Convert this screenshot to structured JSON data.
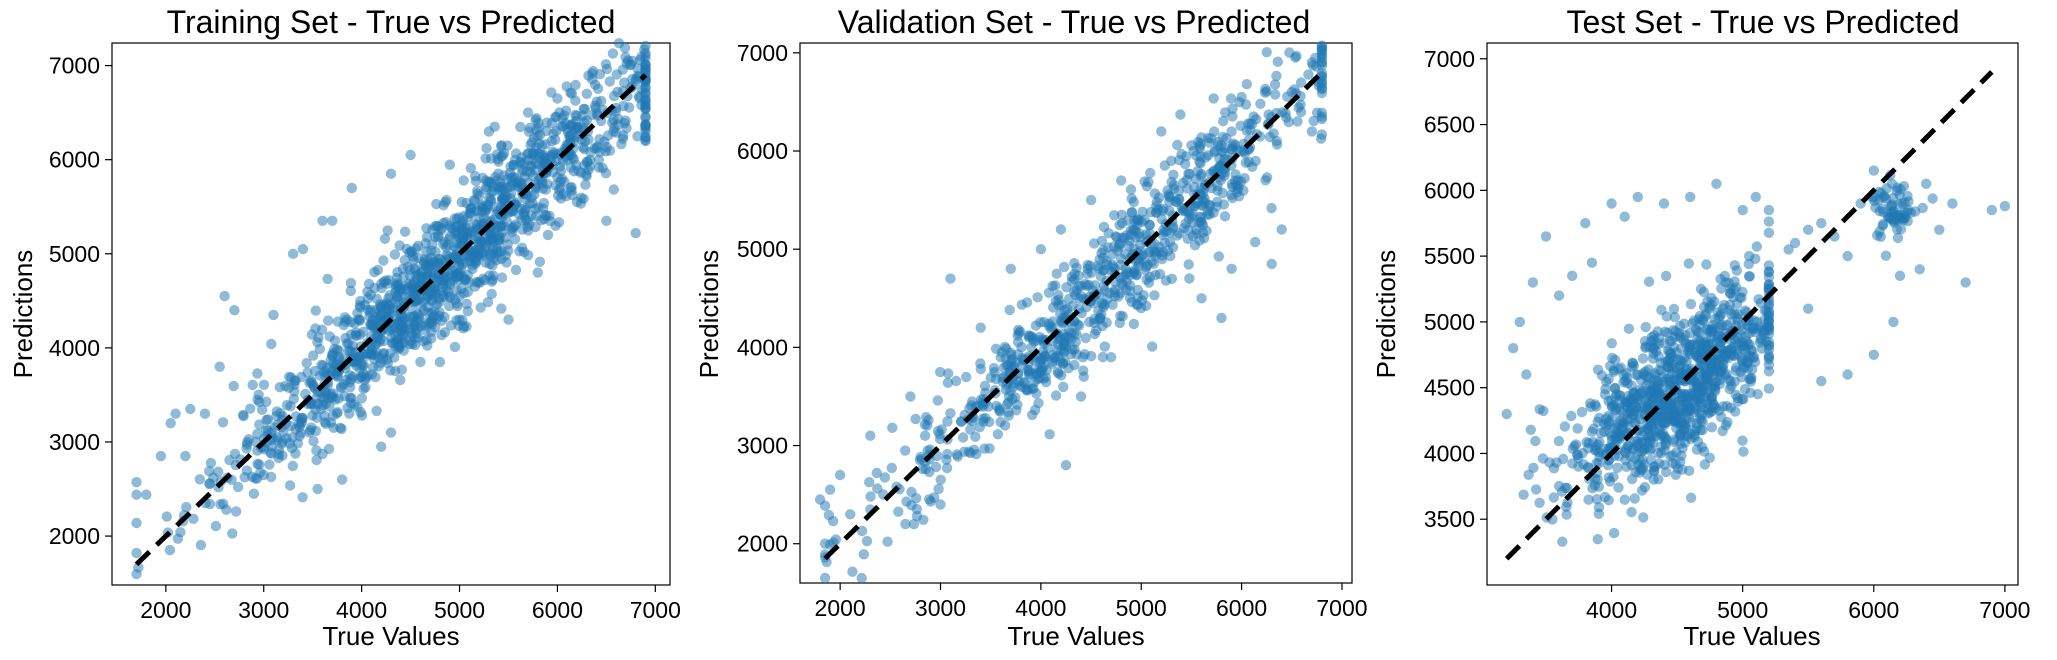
{
  "colors": {
    "points": "#1f77b4",
    "diagonal": "#000000",
    "axes": "#000000"
  },
  "chart_data": [
    {
      "type": "scatter",
      "title": "Training Set - True vs Predicted",
      "xlabel": "True Values",
      "ylabel": "Predictions",
      "xlim": [
        1450,
        7150
      ],
      "ylim": [
        1480,
        7240
      ],
      "xticks": [
        "2000",
        "3000",
        "4000",
        "5000",
        "6000",
        "7000"
      ],
      "yticks": [
        "2000",
        "3000",
        "4000",
        "5000",
        "6000",
        "7000"
      ],
      "diagonal": [
        1700,
        6900
      ],
      "cloud": {
        "n": 1400,
        "x_range": [
          1700,
          6900
        ],
        "noise_sd": 330,
        "slope": 1.0,
        "intercept": 0,
        "x_center": 4900,
        "x_sd": 1150
      },
      "outliers": [
        [
          1700,
          2440
        ],
        [
          1800,
          2440
        ],
        [
          1950,
          2850
        ],
        [
          2050,
          3200
        ],
        [
          2100,
          3300
        ],
        [
          2250,
          3350
        ],
        [
          2600,
          4550
        ],
        [
          2700,
          4400
        ],
        [
          2550,
          3800
        ],
        [
          3300,
          5000
        ],
        [
          3400,
          5050
        ],
        [
          3600,
          5350
        ],
        [
          3700,
          5350
        ],
        [
          3900,
          5700
        ],
        [
          4300,
          5850
        ],
        [
          4500,
          6050
        ],
        [
          4900,
          5300
        ],
        [
          5500,
          4300
        ],
        [
          4800,
          3850
        ],
        [
          4600,
          3850
        ],
        [
          4300,
          3100
        ],
        [
          3800,
          2600
        ],
        [
          3550,
          2500
        ],
        [
          4200,
          2950
        ],
        [
          5300,
          6300
        ],
        [
          5700,
          6500
        ],
        [
          6000,
          6650
        ],
        [
          6300,
          6700
        ],
        [
          6600,
          6550
        ],
        [
          6900,
          6200
        ],
        [
          6800,
          5220
        ],
        [
          6500,
          5350
        ],
        [
          6200,
          5550
        ],
        [
          5800,
          4800
        ],
        [
          3000,
          2650
        ],
        [
          2900,
          2450
        ],
        [
          3100,
          4350
        ],
        [
          2200,
          2850
        ],
        [
          2400,
          3300
        ],
        [
          5000,
          4300
        ]
      ],
      "grid": false
    },
    {
      "type": "scatter",
      "title": "Validation Set - True vs Predicted",
      "xlabel": "True Values",
      "ylabel": "Predictions",
      "xlim": [
        1600,
        7100
      ],
      "ylim": [
        1600,
        7100
      ],
      "xticks": [
        "2000",
        "3000",
        "4000",
        "5000",
        "6000",
        "7000"
      ],
      "yticks": [
        "2000",
        "3000",
        "4000",
        "5000",
        "6000",
        "7000"
      ],
      "diagonal": [
        1850,
        6800
      ],
      "cloud": {
        "n": 850,
        "x_range": [
          1850,
          6800
        ],
        "noise_sd": 300,
        "slope": 1.0,
        "intercept": 0,
        "x_center": 4700,
        "x_sd": 1150
      },
      "outliers": [
        [
          1800,
          2450
        ],
        [
          1900,
          2550
        ],
        [
          2000,
          2700
        ],
        [
          2100,
          2300
        ],
        [
          2300,
          2350
        ],
        [
          2300,
          3100
        ],
        [
          2650,
          2200
        ],
        [
          3000,
          2400
        ],
        [
          2700,
          3500
        ],
        [
          3100,
          4700
        ],
        [
          3400,
          4200
        ],
        [
          3600,
          3900
        ],
        [
          3700,
          4800
        ],
        [
          4000,
          5000
        ],
        [
          4250,
          2800
        ],
        [
          4200,
          5200
        ],
        [
          4500,
          5500
        ],
        [
          4400,
          3500
        ],
        [
          4800,
          5700
        ],
        [
          5200,
          6200
        ],
        [
          5300,
          5900
        ],
        [
          5600,
          4500
        ],
        [
          5800,
          4300
        ],
        [
          5900,
          4800
        ],
        [
          6300,
          4850
        ],
        [
          6400,
          5200
        ],
        [
          6500,
          6600
        ],
        [
          6700,
          6200
        ],
        [
          6800,
          6350
        ],
        [
          6000,
          6550
        ],
        [
          5000,
          4400
        ],
        [
          4700,
          3900
        ]
      ],
      "grid": false
    },
    {
      "type": "scatter",
      "title": "Test Set - True vs Predicted",
      "xlabel": "True Values",
      "ylabel": "Predictions",
      "xlim": [
        3050,
        7100
      ],
      "ylim": [
        3000,
        7120
      ],
      "xticks": [
        "4000",
        "5000",
        "6000",
        "7000"
      ],
      "yticks": [
        "3500",
        "4000",
        "4500",
        "5000",
        "5500",
        "6000",
        "6500",
        "7000"
      ],
      "diagonal": [
        3200,
        6900
      ],
      "cloud": {
        "n": 1000,
        "x_range": [
          3300,
          5200
        ],
        "noise_sd": 280,
        "slope": 0.72,
        "intercept": 1250,
        "x_center": 4500,
        "x_sd": 400
      },
      "cluster": {
        "n": 70,
        "x_center": 6150,
        "y_center": 5850,
        "x_sd": 90,
        "y_sd": 120
      },
      "outliers": [
        [
          3200,
          4300
        ],
        [
          3250,
          4800
        ],
        [
          3300,
          5000
        ],
        [
          3350,
          4600
        ],
        [
          3400,
          5300
        ],
        [
          3500,
          5650
        ],
        [
          3600,
          5200
        ],
        [
          3700,
          5350
        ],
        [
          3800,
          5750
        ],
        [
          3850,
          5450
        ],
        [
          4000,
          5900
        ],
        [
          4100,
          5800
        ],
        [
          4200,
          5950
        ],
        [
          4400,
          5900
        ],
        [
          4600,
          5950
        ],
        [
          4800,
          6050
        ],
        [
          5000,
          5850
        ],
        [
          5100,
          5950
        ],
        [
          5200,
          5850
        ],
        [
          5400,
          5600
        ],
        [
          5500,
          5700
        ],
        [
          5600,
          5750
        ],
        [
          5700,
          5650
        ],
        [
          5800,
          5500
        ],
        [
          5500,
          5100
        ],
        [
          5600,
          4550
        ],
        [
          5800,
          4600
        ],
        [
          6000,
          4750
        ],
        [
          6150,
          5000
        ],
        [
          6200,
          5350
        ],
        [
          6350,
          5400
        ],
        [
          6500,
          5700
        ],
        [
          6600,
          5900
        ],
        [
          6700,
          5300
        ],
        [
          6900,
          5850
        ],
        [
          7000,
          5880
        ],
        [
          6400,
          6050
        ],
        [
          6000,
          6150
        ],
        [
          5900,
          5900
        ],
        [
          5350,
          5550
        ],
        [
          5200,
          5000
        ],
        [
          5050,
          5500
        ],
        [
          4300,
          3950
        ],
        [
          4600,
          4150
        ]
      ],
      "grid": false
    }
  ]
}
